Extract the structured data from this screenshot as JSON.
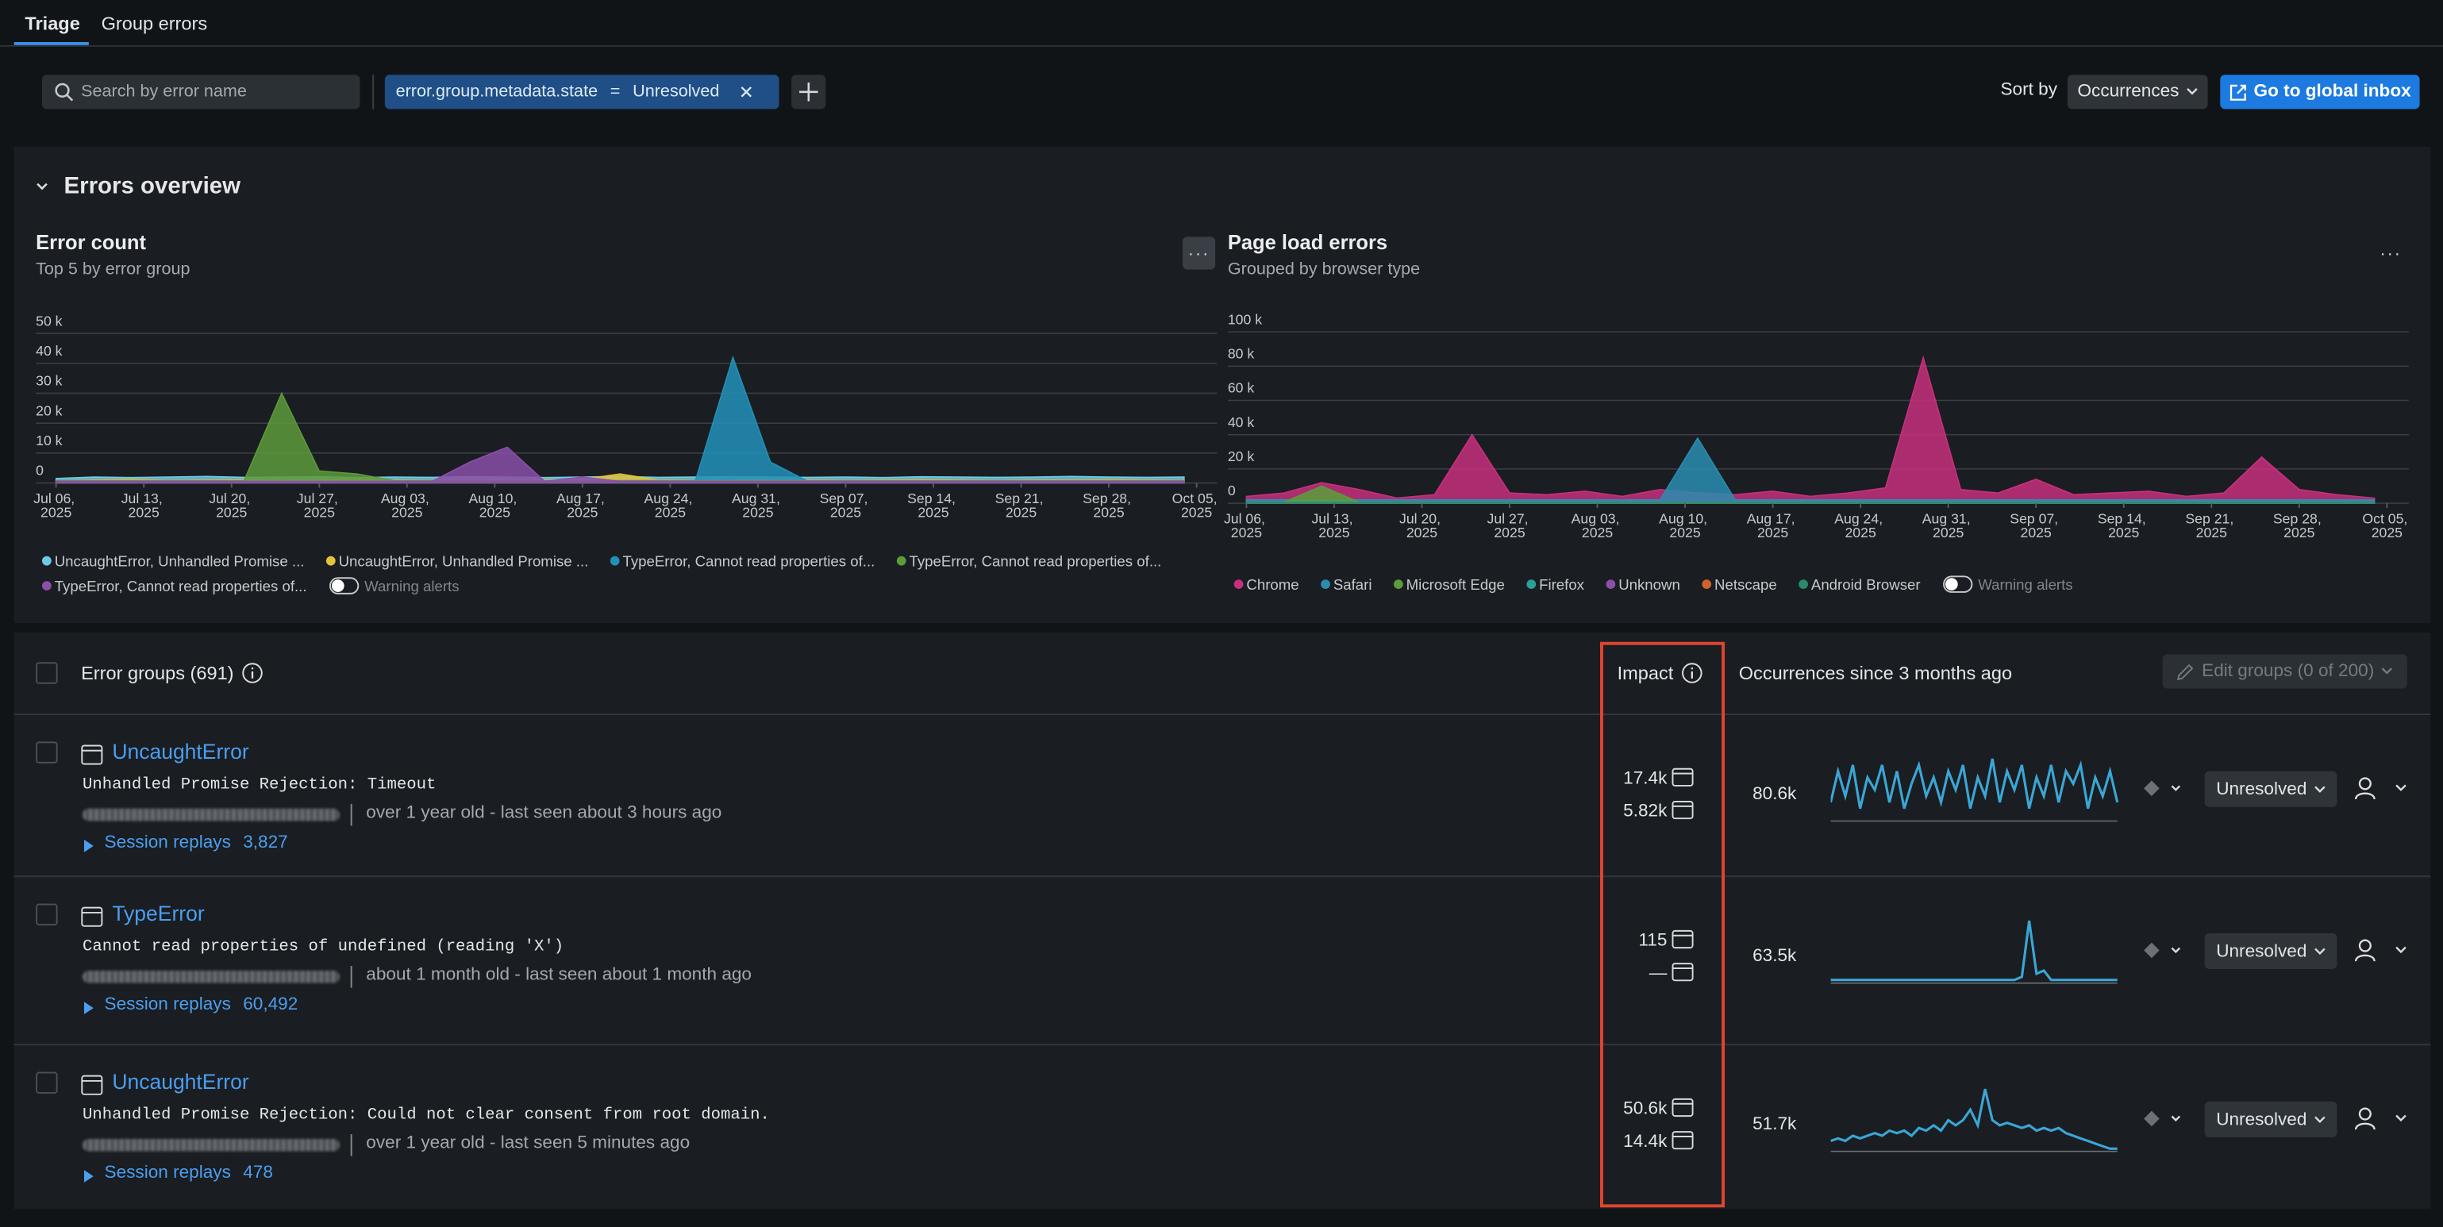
{
  "tabs": [
    "Triage",
    "Group errors"
  ],
  "toolbar": {
    "search_placeholder": "Search by error name",
    "filter": {
      "field": "error.group.metadata.state",
      "operator": "=",
      "value": "Unresolved"
    },
    "sort_label": "Sort by",
    "sort_value": "Occurrences",
    "inbox_button": "Go to global inbox"
  },
  "overview": {
    "title": "Errors overview"
  },
  "chart_data": [
    {
      "type": "area",
      "title": "Error count",
      "subtitle": "Top 5 by error group",
      "x": [
        "2025-07-06",
        "2025-07-09",
        "2025-07-12",
        "2025-07-15",
        "2025-07-18",
        "2025-07-21",
        "2025-07-24",
        "2025-07-27",
        "2025-07-30",
        "2025-08-02",
        "2025-08-05",
        "2025-08-08",
        "2025-08-11",
        "2025-08-14",
        "2025-08-17",
        "2025-08-20",
        "2025-08-23",
        "2025-08-26",
        "2025-08-29",
        "2025-09-01",
        "2025-09-04",
        "2025-09-07",
        "2025-09-10",
        "2025-09-13",
        "2025-09-16",
        "2025-09-19",
        "2025-09-22",
        "2025-09-25",
        "2025-09-28",
        "2025-10-01",
        "2025-10-04"
      ],
      "xlim": [
        "2025-07-06",
        "2025-10-05"
      ],
      "xticks": [
        {
          "value": "2025-07-06",
          "label": "Jul 06, 2025"
        },
        {
          "value": "2025-07-13",
          "label": "Jul 13, 2025"
        },
        {
          "value": "2025-07-20",
          "label": "Jul 20, 2025"
        },
        {
          "value": "2025-07-27",
          "label": "Jul 27, 2025"
        },
        {
          "value": "2025-08-03",
          "label": "Aug 03, 2025"
        },
        {
          "value": "2025-08-10",
          "label": "Aug 10, 2025"
        },
        {
          "value": "2025-08-17",
          "label": "Aug 17, 2025"
        },
        {
          "value": "2025-08-24",
          "label": "Aug 24, 2025"
        },
        {
          "value": "2025-08-31",
          "label": "Aug 31, 2025"
        },
        {
          "value": "2025-09-07",
          "label": "Sep 07, 2025"
        },
        {
          "value": "2025-09-14",
          "label": "Sep 14, 2025"
        },
        {
          "value": "2025-09-21",
          "label": "Sep 21, 2025"
        },
        {
          "value": "2025-09-28",
          "label": "Sep 28, 2025"
        },
        {
          "value": "2025-10-05",
          "label": "Oct 05, 2025"
        }
      ],
      "ylim": [
        0,
        50000
      ],
      "yticks": [
        0,
        {
          "value": 10000,
          "label": "10 k"
        },
        {
          "value": 20000,
          "label": "20 k"
        },
        {
          "value": 30000,
          "label": "30 k"
        },
        {
          "value": 40000,
          "label": "40 k"
        },
        {
          "value": 50000,
          "label": "50 k"
        }
      ],
      "grid": true,
      "series": [
        {
          "name": "UncaughtError, Unhandled Promise ...",
          "color": "#6cc9ec",
          "values": [
            1500,
            2000,
            1800,
            2000,
            2200,
            1900,
            2000,
            2100,
            1800,
            2000,
            1900,
            2100,
            2000,
            1800,
            2000,
            2200,
            1900,
            2000,
            2100,
            2000,
            1900,
            2000,
            1800,
            2100,
            2000,
            1900,
            2000,
            2200,
            2000,
            1900,
            2000
          ]
        },
        {
          "name": "UncaughtError, Unhandled Promise ...",
          "color": "#e3c23c",
          "values": [
            800,
            1000,
            1200,
            900,
            1000,
            1100,
            900,
            1000,
            1200,
            1000,
            900,
            1100,
            1000,
            1000,
            1200,
            3000,
            1000,
            900,
            1000,
            1100,
            1000,
            900,
            1000,
            1100,
            1000,
            900,
            1000,
            1000,
            1100,
            1000,
            900
          ]
        },
        {
          "name": "TypeError, Cannot read properties of...",
          "color": "#2290b8",
          "values": [
            500,
            500,
            500,
            500,
            500,
            500,
            500,
            500,
            500,
            500,
            500,
            500,
            500,
            500,
            500,
            500,
            500,
            500,
            42000,
            7000,
            500,
            500,
            500,
            500,
            500,
            500,
            500,
            500,
            500,
            500,
            500
          ]
        },
        {
          "name": "TypeError, Cannot read properties of...",
          "color": "#5d9a3b",
          "values": [
            800,
            800,
            800,
            800,
            800,
            800,
            30000,
            4000,
            3000,
            800,
            800,
            800,
            800,
            800,
            800,
            800,
            800,
            800,
            800,
            800,
            800,
            800,
            800,
            800,
            800,
            800,
            800,
            800,
            800,
            800,
            800
          ]
        },
        {
          "name": "TypeError, Cannot read properties of...",
          "color": "#8a4fa8",
          "values": [
            500,
            500,
            500,
            500,
            500,
            500,
            500,
            500,
            500,
            500,
            500,
            7000,
            12000,
            500,
            2000,
            500,
            500,
            500,
            500,
            500,
            500,
            500,
            500,
            500,
            500,
            500,
            500,
            500,
            500,
            500,
            500
          ]
        }
      ],
      "warning_toggle": "Warning alerts"
    },
    {
      "type": "area",
      "title": "Page load errors",
      "subtitle": "Grouped by browser type",
      "x": [
        "2025-07-06",
        "2025-07-09",
        "2025-07-12",
        "2025-07-15",
        "2025-07-18",
        "2025-07-21",
        "2025-07-24",
        "2025-07-27",
        "2025-07-30",
        "2025-08-02",
        "2025-08-05",
        "2025-08-08",
        "2025-08-11",
        "2025-08-14",
        "2025-08-17",
        "2025-08-20",
        "2025-08-23",
        "2025-08-26",
        "2025-08-29",
        "2025-09-01",
        "2025-09-04",
        "2025-09-07",
        "2025-09-10",
        "2025-09-13",
        "2025-09-16",
        "2025-09-19",
        "2025-09-22",
        "2025-09-25",
        "2025-09-28",
        "2025-10-01",
        "2025-10-04"
      ],
      "xlim": [
        "2025-07-06",
        "2025-10-05"
      ],
      "xticks": [
        {
          "value": "2025-07-06",
          "label": "Jul 06, 2025"
        },
        {
          "value": "2025-07-13",
          "label": "Jul 13, 2025"
        },
        {
          "value": "2025-07-20",
          "label": "Jul 20, 2025"
        },
        {
          "value": "2025-07-27",
          "label": "Jul 27, 2025"
        },
        {
          "value": "2025-08-03",
          "label": "Aug 03, 2025"
        },
        {
          "value": "2025-08-10",
          "label": "Aug 10, 2025"
        },
        {
          "value": "2025-08-17",
          "label": "Aug 17, 2025"
        },
        {
          "value": "2025-08-24",
          "label": "Aug 24, 2025"
        },
        {
          "value": "2025-08-31",
          "label": "Aug 31, 2025"
        },
        {
          "value": "2025-09-07",
          "label": "Sep 07, 2025"
        },
        {
          "value": "2025-09-14",
          "label": "Sep 14, 2025"
        },
        {
          "value": "2025-09-21",
          "label": "Sep 21, 2025"
        },
        {
          "value": "2025-09-28",
          "label": "Sep 28, 2025"
        },
        {
          "value": "2025-10-05",
          "label": "Oct 05, 2025"
        }
      ],
      "ylim": [
        0,
        100000
      ],
      "yticks": [
        0,
        {
          "value": 20000,
          "label": "20 k"
        },
        {
          "value": 40000,
          "label": "40 k"
        },
        {
          "value": 60000,
          "label": "60 k"
        },
        {
          "value": 80000,
          "label": "80 k"
        },
        {
          "value": 100000,
          "label": "100 k"
        }
      ],
      "grid": true,
      "series": [
        {
          "name": "Chrome",
          "color": "#c7307c",
          "values": [
            4000,
            6000,
            12000,
            8000,
            3000,
            5000,
            40000,
            6000,
            5000,
            7000,
            4000,
            8000,
            6000,
            5000,
            7000,
            4000,
            6000,
            9000,
            85000,
            8000,
            6000,
            14000,
            5000,
            6000,
            7000,
            4000,
            6000,
            27000,
            8000,
            5000,
            3000
          ]
        },
        {
          "name": "Safari",
          "color": "#2a8db0",
          "values": [
            2000,
            2000,
            2000,
            2000,
            2000,
            2000,
            2000,
            2000,
            2000,
            2000,
            2000,
            2000,
            38000,
            2000,
            2000,
            2000,
            2000,
            2000,
            2000,
            2000,
            2000,
            2000,
            2000,
            2000,
            2000,
            2000,
            2000,
            2000,
            2000,
            2000,
            2000
          ]
        },
        {
          "name": "Microsoft Edge",
          "color": "#5a9e3c",
          "values": [
            500,
            500,
            10000,
            500,
            500,
            500,
            500,
            500,
            500,
            500,
            500,
            500,
            500,
            500,
            500,
            500,
            500,
            500,
            500,
            500,
            500,
            500,
            500,
            500,
            500,
            500,
            500,
            500,
            500,
            500,
            500
          ]
        },
        {
          "name": "Firefox",
          "color": "#2aa198",
          "values": [
            500,
            500,
            500,
            500,
            500,
            500,
            500,
            500,
            500,
            500,
            500,
            500,
            500,
            500,
            500,
            500,
            500,
            500,
            500,
            500,
            500,
            500,
            500,
            500,
            500,
            500,
            500,
            500,
            500,
            500,
            500
          ]
        },
        {
          "name": "Unknown",
          "color": "#8a4fa8",
          "values": [
            300,
            300,
            300,
            300,
            300,
            300,
            300,
            300,
            300,
            300,
            300,
            300,
            300,
            300,
            300,
            300,
            300,
            300,
            300,
            300,
            300,
            300,
            300,
            300,
            300,
            300,
            300,
            300,
            300,
            300,
            300
          ]
        },
        {
          "name": "Netscape",
          "color": "#d0622d",
          "values": [
            200,
            200,
            200,
            200,
            200,
            200,
            200,
            200,
            200,
            200,
            200,
            200,
            200,
            200,
            200,
            200,
            200,
            200,
            200,
            200,
            200,
            200,
            200,
            200,
            200,
            200,
            200,
            200,
            200,
            200,
            200
          ]
        },
        {
          "name": "Android Browser",
          "color": "#2a8a6a",
          "values": [
            300,
            300,
            300,
            300,
            300,
            300,
            300,
            300,
            300,
            300,
            300,
            300,
            300,
            300,
            300,
            300,
            300,
            300,
            300,
            300,
            300,
            300,
            300,
            300,
            300,
            300,
            300,
            300,
            300,
            300,
            300
          ]
        }
      ],
      "warning_toggle": "Warning alerts"
    }
  ],
  "table": {
    "title": "Error groups (691)",
    "impact_header": "Impact",
    "occurrences_header": "Occurrences since 3 months ago",
    "edit_button": "Edit groups (0 of 200)",
    "rows": [
      {
        "name": "UncaughtError",
        "message": "Unhandled Promise Rejection: Timeout",
        "age": "over 1 year old - last seen about 3 hours ago",
        "replays_label": "Session replays",
        "replays": "3,827",
        "impact": [
          "17.4k",
          "5.82k"
        ],
        "occurrences": "80.6k",
        "sparkline": [
          3,
          8,
          4,
          9,
          2,
          7,
          5,
          9,
          3,
          8,
          2,
          6,
          9,
          4,
          7,
          3,
          8,
          5,
          9,
          2,
          7,
          4,
          10,
          3,
          8,
          5,
          9,
          2,
          7,
          4,
          9,
          3,
          8,
          6,
          9,
          2,
          7,
          4,
          8,
          3
        ],
        "status": "Unresolved"
      },
      {
        "name": "TypeError",
        "message": "Cannot read properties of undefined (reading 'X')",
        "age": "about 1 month old - last seen about 1 month ago",
        "replays_label": "Session replays",
        "replays": "60,492",
        "impact": [
          "115",
          "—"
        ],
        "occurrences": "63.5k",
        "sparkline": [
          1,
          1,
          1,
          1,
          1,
          1,
          1,
          1,
          1,
          1,
          1,
          1,
          1,
          1,
          1,
          1,
          1,
          1,
          1,
          1,
          1,
          1,
          1,
          1,
          1,
          1,
          2,
          20,
          3,
          4,
          1,
          1,
          1,
          1,
          1,
          1,
          1,
          1,
          1,
          1
        ],
        "status": "Unresolved"
      },
      {
        "name": "UncaughtError",
        "message": "Unhandled Promise Rejection: Could not clear consent from root domain.",
        "age": "over 1 year old - last seen 5 minutes ago",
        "replays_label": "Session replays",
        "replays": "478",
        "impact": [
          "50.6k",
          "14.4k"
        ],
        "occurrences": "51.7k",
        "sparkline": [
          2,
          2.5,
          2,
          3,
          2.5,
          3,
          3.5,
          3,
          4,
          3.5,
          4,
          3,
          4.5,
          4,
          5,
          4,
          6,
          5,
          6,
          8,
          5,
          12,
          6,
          5,
          5.5,
          5,
          4.5,
          5,
          4,
          4.5,
          4,
          4.5,
          3.5,
          3,
          2.5,
          2,
          1.5,
          1,
          0.5,
          0.5
        ],
        "status": "Unresolved"
      }
    ]
  }
}
